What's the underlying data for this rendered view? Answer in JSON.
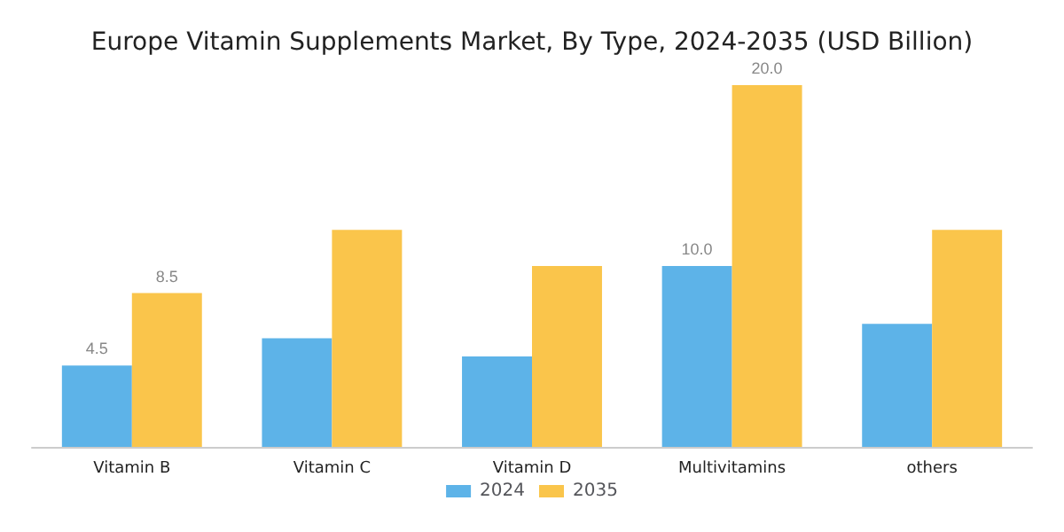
{
  "chart_data": {
    "type": "bar",
    "title": "Europe Vitamin Supplements Market, By Type, 2024-2035 (USD Billion)",
    "categories": [
      "Vitamin B",
      "Vitamin C",
      "Vitamin D",
      "Multivitamins",
      "others"
    ],
    "series": [
      {
        "name": "2024",
        "color": "#5db3e8",
        "values": [
          4.5,
          6.0,
          5.0,
          10.0,
          6.8
        ],
        "value_labels": [
          "4.5",
          null,
          null,
          "10.0",
          null
        ]
      },
      {
        "name": "2035",
        "color": "#fac54b",
        "values": [
          8.5,
          12.0,
          10.0,
          20.0,
          12.0
        ],
        "value_labels": [
          "8.5",
          null,
          null,
          "20.0",
          null
        ]
      }
    ],
    "grid": false,
    "legend": "bottom"
  }
}
